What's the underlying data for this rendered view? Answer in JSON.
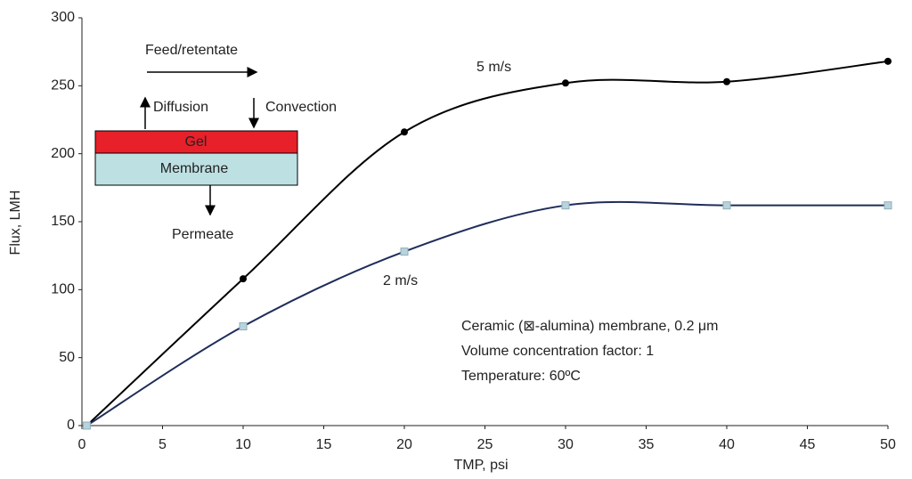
{
  "chart_data": {
    "type": "line",
    "x_label": "TMP, psi",
    "y_label": "Flux, LMH",
    "x": [
      0.3,
      10,
      20,
      30,
      40,
      50
    ],
    "series": [
      {
        "name": "5 m/s",
        "color": "#000000",
        "marker_color": "#000000",
        "values": [
          0,
          108,
          216,
          252,
          253,
          268
        ]
      },
      {
        "name": "2 m/s",
        "color": "#1f2d5a",
        "marker_color": "#b9d3dc",
        "values": [
          0,
          73,
          128,
          162,
          162,
          162
        ]
      }
    ],
    "xlim": [
      0,
      50
    ],
    "xticks": [
      0,
      5,
      10,
      15,
      20,
      25,
      30,
      35,
      40,
      45,
      50
    ],
    "ylim": [
      0,
      300
    ],
    "yticks": [
      0,
      50,
      100,
      150,
      200,
      250,
      300
    ],
    "grid": false,
    "notes": [
      "Ceramic (⊠-alumina) membrane, 0.2 μm",
      "Volume concentration factor: 1",
      "Temperature: 60ºC"
    ],
    "diagram": {
      "flow": "Feed/retentate",
      "up": "Diffusion",
      "down": "Convection",
      "top_layer": "Gel",
      "bottom_layer": "Membrane",
      "out": "Permeate"
    }
  }
}
